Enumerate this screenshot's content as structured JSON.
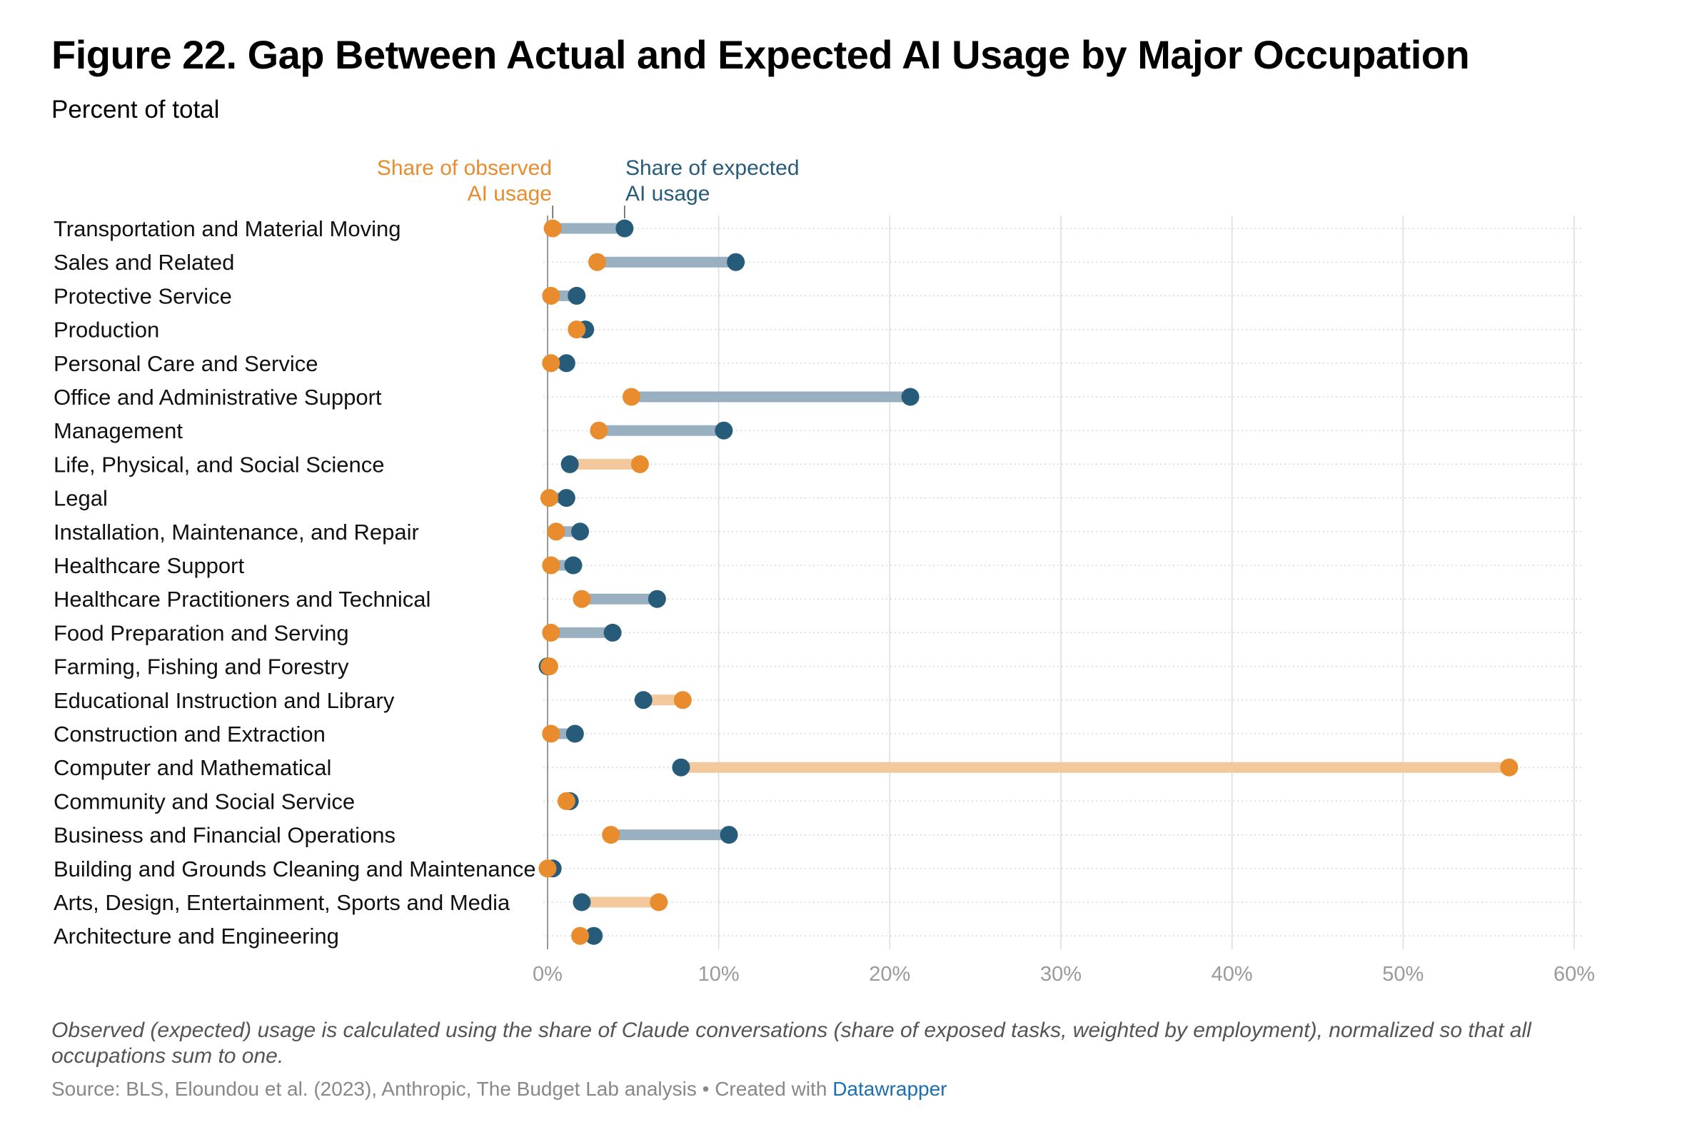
{
  "header": {
    "title": "Figure 22. Gap Between Actual and Expected AI Usage by Major Occupation",
    "subtitle": "Percent of total"
  },
  "footer": {
    "note": "Observed (expected) usage is calculated using the share of Claude conversations (share of exposed tasks, weighted by employment), normalized so that all occupations sum to one.",
    "source_prefix": "Source: BLS, Eloundou et al. (2023), Anthropic, The Budget Lab analysis • Created with ",
    "source_link": "Datawrapper"
  },
  "colors": {
    "observed": "#e88c2e",
    "expected": "#265b7a",
    "observed_bar": "#f3c89c",
    "expected_bar": "#98b0c0"
  },
  "chart_data": {
    "type": "dumbbell",
    "title": "Figure 22. Gap Between Actual and Expected AI Usage by Major Occupation",
    "subtitle": "Percent of total",
    "series": [
      {
        "name": "Share of observed AI usage",
        "key": "observed"
      },
      {
        "name": "Share of expected AI usage",
        "key": "expected"
      }
    ],
    "x_ticks": [
      0,
      10,
      20,
      30,
      40,
      50,
      60
    ],
    "x_tick_labels": [
      "0%",
      "10%",
      "20%",
      "30%",
      "40%",
      "50%",
      "60%"
    ],
    "xlim": [
      0,
      60
    ],
    "grid": true,
    "rows": [
      {
        "label": "Transportation and Material Moving",
        "observed": 0.3,
        "expected": 4.5
      },
      {
        "label": "Sales and Related",
        "observed": 2.9,
        "expected": 11.0
      },
      {
        "label": "Protective Service",
        "observed": 0.2,
        "expected": 1.7
      },
      {
        "label": "Production",
        "observed": 1.7,
        "expected": 2.2
      },
      {
        "label": "Personal Care and Service",
        "observed": 0.2,
        "expected": 1.1
      },
      {
        "label": "Office and Administrative Support",
        "observed": 4.9,
        "expected": 21.2
      },
      {
        "label": "Management",
        "observed": 3.0,
        "expected": 10.3
      },
      {
        "label": "Life, Physical, and Social Science",
        "observed": 5.4,
        "expected": 1.3
      },
      {
        "label": "Legal",
        "observed": 0.1,
        "expected": 1.1
      },
      {
        "label": "Installation, Maintenance, and Repair",
        "observed": 0.5,
        "expected": 1.9
      },
      {
        "label": "Healthcare Support",
        "observed": 0.2,
        "expected": 1.5
      },
      {
        "label": "Healthcare Practitioners and Technical",
        "observed": 2.0,
        "expected": 6.4
      },
      {
        "label": "Food Preparation and Serving",
        "observed": 0.2,
        "expected": 3.8
      },
      {
        "label": "Farming, Fishing and Forestry",
        "observed": 0.1,
        "expected": 0.0
      },
      {
        "label": "Educational Instruction and Library",
        "observed": 7.9,
        "expected": 5.6
      },
      {
        "label": "Construction and Extraction",
        "observed": 0.2,
        "expected": 1.6
      },
      {
        "label": "Computer and Mathematical",
        "observed": 56.2,
        "expected": 7.8
      },
      {
        "label": "Community and Social Service",
        "observed": 1.1,
        "expected": 1.3
      },
      {
        "label": "Business and Financial Operations",
        "observed": 3.7,
        "expected": 10.6
      },
      {
        "label": "Building and Grounds Cleaning and Maintenance",
        "observed": 0.0,
        "expected": 0.3
      },
      {
        "label": "Arts, Design, Entertainment, Sports and Media",
        "observed": 6.5,
        "expected": 2.0
      },
      {
        "label": "Architecture and Engineering",
        "observed": 1.9,
        "expected": 2.7
      }
    ]
  }
}
